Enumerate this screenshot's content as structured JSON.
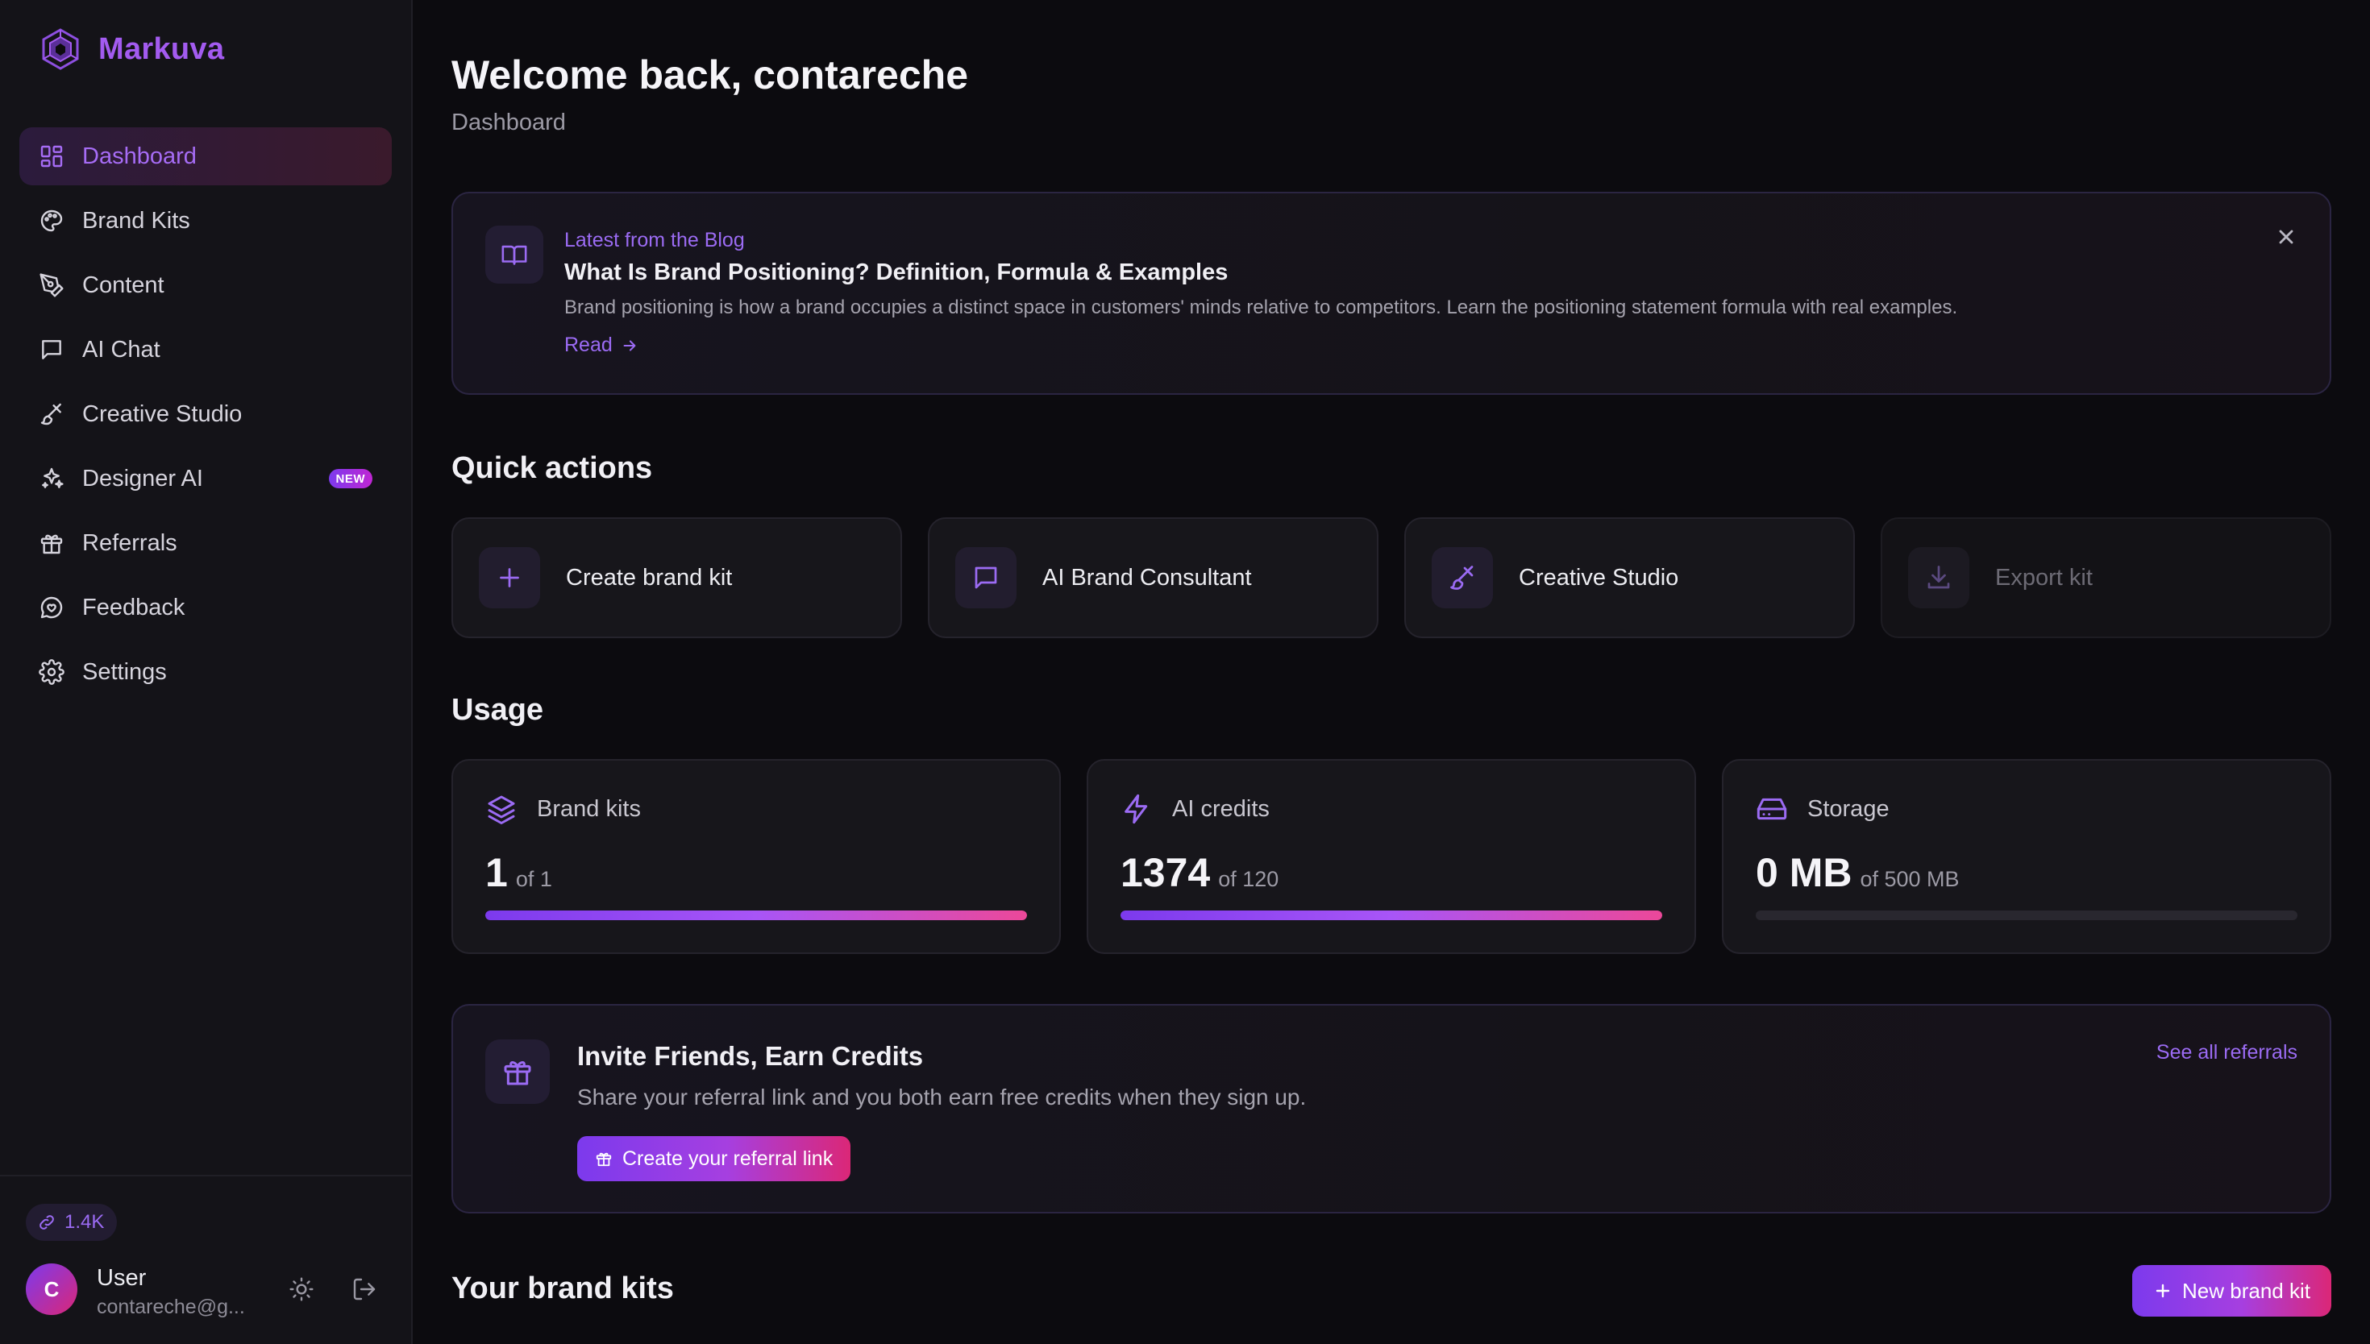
{
  "brand": {
    "name": "Markuva",
    "color": "#a35bf0"
  },
  "sidebar": {
    "items": [
      {
        "label": "Dashboard",
        "icon": "dashboard-icon",
        "active": true
      },
      {
        "label": "Brand Kits",
        "icon": "palette-icon"
      },
      {
        "label": "Content",
        "icon": "pen-tool-icon"
      },
      {
        "label": "AI Chat",
        "icon": "chat-icon"
      },
      {
        "label": "Creative Studio",
        "icon": "brush-icon"
      },
      {
        "label": "Designer AI",
        "icon": "sparkles-icon",
        "badge": "NEW"
      },
      {
        "label": "Referrals",
        "icon": "gift-icon"
      },
      {
        "label": "Feedback",
        "icon": "feedback-icon"
      },
      {
        "label": "Settings",
        "icon": "gear-icon"
      }
    ],
    "footer": {
      "credits": "1.4K",
      "avatar_initial": "C",
      "user_name": "User",
      "user_email": "contareche@g..."
    }
  },
  "header": {
    "title": "Welcome back, contareche",
    "subtitle": "Dashboard"
  },
  "blog": {
    "kicker": "Latest from the Blog",
    "title": "What Is Brand Positioning? Definition, Formula & Examples",
    "description": "Brand positioning is how a brand occupies a distinct space in customers' minds relative to competitors. Learn the positioning statement formula with real examples.",
    "read_label": "Read"
  },
  "quick_actions": {
    "title": "Quick actions",
    "items": [
      {
        "label": "Create brand kit",
        "icon": "plus-icon"
      },
      {
        "label": "AI Brand Consultant",
        "icon": "chat-icon"
      },
      {
        "label": "Creative Studio",
        "icon": "brush-icon"
      },
      {
        "label": "Export kit",
        "icon": "download-icon",
        "disabled": true
      }
    ]
  },
  "usage": {
    "title": "Usage",
    "items": [
      {
        "label": "Brand kits",
        "value": "1",
        "of": "of 1",
        "progress": 1.0,
        "icon": "layers-icon"
      },
      {
        "label": "AI credits",
        "value": "1374",
        "of": "of 120",
        "progress": 1.0,
        "icon": "lightning-icon"
      },
      {
        "label": "Storage",
        "value": "0 MB",
        "of": "of 500 MB",
        "progress": 0.0,
        "icon": "hard-drive-icon"
      }
    ]
  },
  "invite": {
    "title": "Invite Friends, Earn Credits",
    "description": "Share your referral link and you both earn free credits when they sign up.",
    "button_label": "Create your referral link",
    "link_label": "See all referrals"
  },
  "brand_kits": {
    "title": "Your brand kits",
    "new_button_label": "New brand kit"
  },
  "colors": {
    "accent": "#9b6bf3",
    "gradient_start": "#7c3aed",
    "gradient_end": "#db2777",
    "background": "#0c0b0f"
  }
}
